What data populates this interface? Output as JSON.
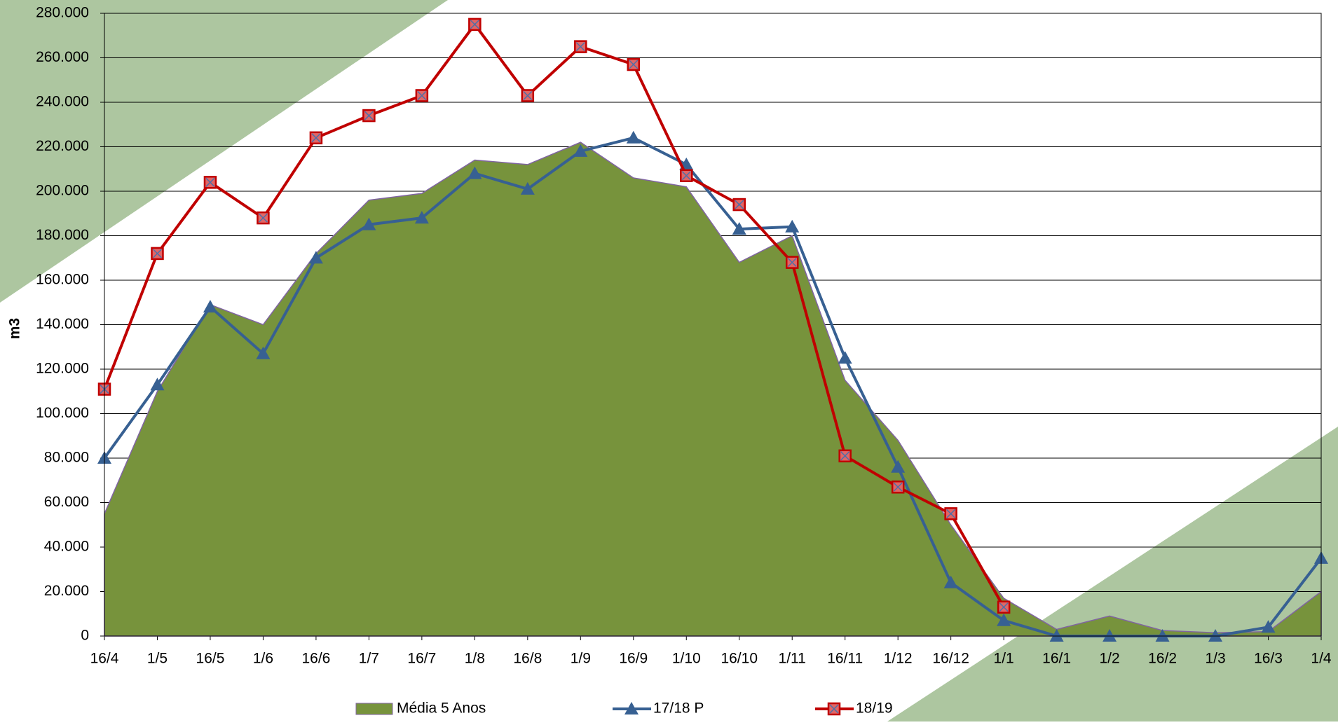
{
  "chart_data": {
    "type": "line",
    "y_label": "m3",
    "categories": [
      "16/4",
      "1/5",
      "16/5",
      "1/6",
      "16/6",
      "1/7",
      "16/7",
      "1/8",
      "16/8",
      "1/9",
      "16/9",
      "1/10",
      "16/10",
      "1/11",
      "16/11",
      "1/12",
      "16/12",
      "1/1",
      "16/1",
      "1/2",
      "16/2",
      "1/3",
      "16/3",
      "1/4"
    ],
    "series": [
      {
        "name": "Média  5 Anos",
        "type": "area",
        "color": "#77933c",
        "values": [
          55000,
          110000,
          149000,
          140000,
          172000,
          196000,
          199000,
          214000,
          212000,
          222000,
          206000,
          202000,
          168000,
          180000,
          115000,
          88000,
          50000,
          17000,
          3000,
          9000,
          2500,
          1500,
          2000,
          20000
        ]
      },
      {
        "name": "17/18 P",
        "type": "line",
        "marker": "triangle",
        "color": "#376092",
        "values": [
          80000,
          113000,
          148000,
          127000,
          170000,
          185000,
          188000,
          208000,
          201000,
          218000,
          224000,
          212000,
          183000,
          184000,
          125000,
          76000,
          24000,
          7000,
          0,
          0,
          0,
          0,
          4000,
          35000
        ]
      },
      {
        "name": "18/19",
        "type": "line",
        "marker": "square-x",
        "color": "#c00000",
        "values": [
          111000,
          172000,
          204000,
          188000,
          224000,
          234000,
          243000,
          275000,
          243000,
          265000,
          257000,
          207000,
          194000,
          168000,
          81000,
          67000,
          55000,
          13000,
          null,
          null,
          null,
          null,
          null,
          null
        ]
      }
    ],
    "ylim": [
      0,
      280000
    ],
    "yticks": [
      0,
      {
        "value": 20000,
        "label": "20.000"
      },
      {
        "value": 40000,
        "label": "40.000"
      },
      {
        "value": 60000,
        "label": "60.000"
      },
      {
        "value": 80000,
        "label": "80.000"
      },
      {
        "value": 100000,
        "label": "100.000"
      },
      {
        "value": 120000,
        "label": "120.000"
      },
      {
        "value": 140000,
        "label": "140.000"
      },
      {
        "value": 160000,
        "label": "160.000"
      },
      {
        "value": 180000,
        "label": "180.000"
      },
      {
        "value": 200000,
        "label": "200.000"
      },
      {
        "value": 220000,
        "label": "220.000"
      },
      {
        "value": 240000,
        "label": "240.000"
      },
      {
        "value": 260000,
        "label": "260.000"
      },
      {
        "value": 280000,
        "label": "280.000"
      }
    ],
    "grid": true,
    "legend": "bottom"
  }
}
